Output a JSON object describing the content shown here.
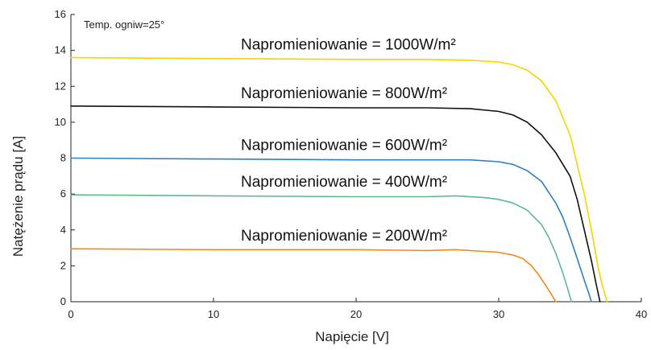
{
  "chart_data": {
    "type": "line",
    "title": "",
    "xlabel": "Napięcie [V]",
    "ylabel": "Natężenie prądu [A]",
    "xlim": [
      0,
      40
    ],
    "ylim": [
      0,
      16
    ],
    "xticks": [
      "0",
      "10",
      "20",
      "30",
      "40"
    ],
    "yticks": [
      "0",
      "2",
      "4",
      "6",
      "8",
      "10",
      "12",
      "14",
      "16"
    ],
    "grid": false,
    "note": "Temp. ogniw=25°",
    "series": [
      {
        "name": "Napromieniowanie = 1000W/m²",
        "color": "#f5d400",
        "x": [
          0,
          10,
          20,
          25,
          28,
          30,
          31,
          32,
          33,
          34,
          35,
          36,
          36.5,
          37,
          37.3,
          37.6
        ],
        "y": [
          13.6,
          13.55,
          13.5,
          13.5,
          13.45,
          13.35,
          13.2,
          12.9,
          12.3,
          11.2,
          9.3,
          6.0,
          4.0,
          1.8,
          0.8,
          0
        ]
      },
      {
        "name": "Napromieniowanie = 800W/m²",
        "color": "#111111",
        "x": [
          0,
          10,
          20,
          25,
          28,
          30,
          31,
          32,
          33,
          34,
          35,
          35.5,
          36,
          36.5,
          36.8,
          37.1
        ],
        "y": [
          10.9,
          10.85,
          10.8,
          10.8,
          10.75,
          10.6,
          10.4,
          10.0,
          9.3,
          8.3,
          7.0,
          5.7,
          4.0,
          2.3,
          1.1,
          0
        ]
      },
      {
        "name": "Napromieniowanie = 600W/m²",
        "color": "#2f7fc1",
        "x": [
          0,
          10,
          20,
          25,
          28,
          30,
          31,
          32,
          33,
          34,
          34.5,
          35,
          35.5,
          36,
          36.3,
          36.5
        ],
        "y": [
          8.0,
          7.95,
          7.9,
          7.9,
          7.9,
          7.8,
          7.65,
          7.3,
          6.7,
          5.5,
          4.7,
          3.6,
          2.4,
          1.2,
          0.5,
          0
        ]
      },
      {
        "name": "Napromieniowanie = 400W/m²",
        "color": "#5fb98f",
        "x": [
          0,
          10,
          20,
          25,
          27,
          29,
          30,
          31,
          32,
          33,
          33.5,
          34,
          34.5,
          34.8,
          35.1
        ],
        "y": [
          5.95,
          5.9,
          5.85,
          5.85,
          5.9,
          5.8,
          5.7,
          5.5,
          5.1,
          4.3,
          3.6,
          2.7,
          1.6,
          0.8,
          0
        ]
      },
      {
        "name": "Napromieniowanie = 200W/m²",
        "color": "#f08b1a",
        "x": [
          0,
          10,
          20,
          25,
          27,
          29,
          30,
          31,
          31.7,
          32.3,
          32.8,
          33.3,
          33.7,
          34.0
        ],
        "y": [
          2.95,
          2.9,
          2.9,
          2.85,
          2.9,
          2.8,
          2.75,
          2.6,
          2.4,
          2.0,
          1.5,
          0.9,
          0.4,
          0
        ]
      }
    ]
  }
}
